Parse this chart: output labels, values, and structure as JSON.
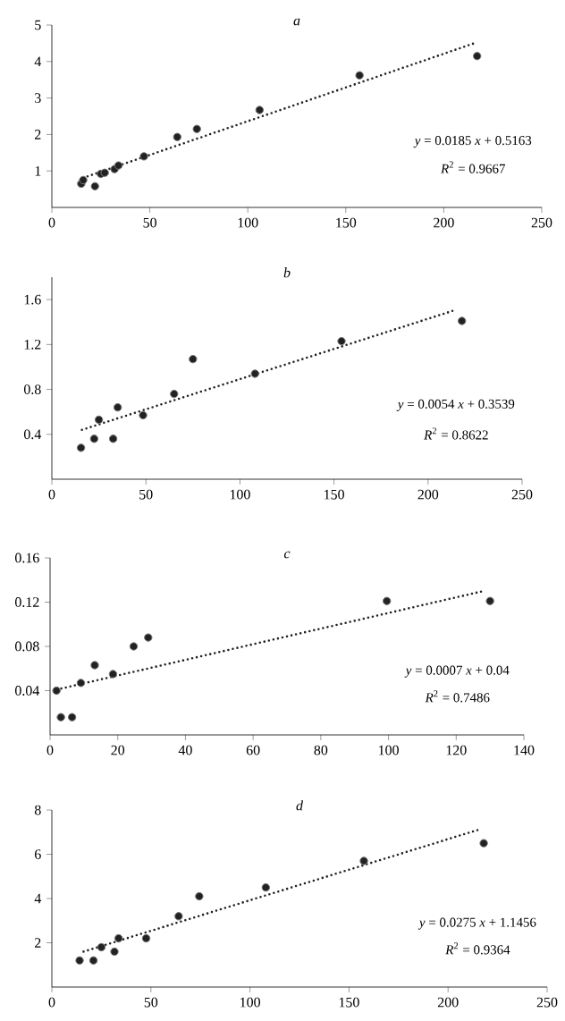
{
  "chart_data": [
    {
      "type": "scatter",
      "title": "a",
      "xlim": [
        0,
        250
      ],
      "ylim": [
        0,
        5
      ],
      "xticks": [
        0,
        50,
        100,
        150,
        200,
        250
      ],
      "yticks": [
        1,
        2,
        3,
        4,
        5
      ],
      "annotations": [
        "*y* = 0.0185 *x* + 0.5163",
        "*R*$^{2}$ = 0.9667"
      ],
      "series": [
        {
          "marker": "circle",
          "color": "#222222",
          "x": [
            15,
            16,
            22,
            25,
            27,
            32,
            34,
            47,
            64,
            74,
            106,
            157,
            217
          ],
          "values": [
            0.65,
            0.75,
            0.58,
            0.92,
            0.95,
            1.05,
            1.15,
            1.4,
            1.93,
            2.15,
            2.67,
            3.62,
            4.15
          ]
        },
        {
          "type": "line",
          "marker": "none",
          "line_style": "dotted",
          "color": "#222222",
          "x": [
            16,
            215
          ],
          "values": [
            0.81,
            4.49
          ]
        }
      ]
    },
    {
      "type": "scatter",
      "title": "b",
      "xlim": [
        0,
        250
      ],
      "ylim": [
        0,
        1.8
      ],
      "xticks": [
        0,
        50,
        100,
        150,
        200,
        250
      ],
      "yticks": [
        0.4,
        0.8,
        1.2,
        1.6
      ],
      "annotations": [
        "*y* = 0.0054 *x* + 0.3539",
        "*R*$^{2}$ = 0.8622"
      ],
      "series": [
        {
          "marker": "circle",
          "color": "#222222",
          "x": [
            15.5,
            22.5,
            25,
            32.6,
            35,
            48.5,
            65,
            75,
            108,
            154,
            218
          ],
          "values": [
            0.28,
            0.36,
            0.53,
            0.36,
            0.64,
            0.57,
            0.76,
            1.07,
            0.94,
            1.23,
            1.41
          ]
        },
        {
          "type": "line",
          "marker": "none",
          "line_style": "dotted",
          "color": "#222222",
          "x": [
            16,
            215
          ],
          "values": [
            0.44,
            1.51
          ]
        }
      ]
    },
    {
      "type": "scatter",
      "title": "c",
      "xlim": [
        0,
        140
      ],
      "ylim": [
        0,
        0.16
      ],
      "xticks": [
        0,
        20,
        40,
        60,
        80,
        100,
        120,
        140
      ],
      "yticks": [
        0.04,
        0.08,
        0.12,
        0.16
      ],
      "annotations": [
        "*y* = 0.0007 *x* + 0.04",
        "*R*$^{2}$ = 0.7486"
      ],
      "series": [
        {
          "marker": "circle",
          "color": "#222222",
          "x": [
            1.9,
            3.2,
            6.5,
            9.1,
            13.2,
            18.6,
            24.7,
            29,
            99.5,
            130
          ],
          "values": [
            0.04,
            0.016,
            0.016,
            0.047,
            0.063,
            0.055,
            0.08,
            0.088,
            0.121,
            0.121
          ]
        },
        {
          "type": "line",
          "marker": "none",
          "line_style": "dotted",
          "color": "#222222",
          "x": [
            2,
            128
          ],
          "values": [
            0.041,
            0.13
          ]
        }
      ]
    },
    {
      "type": "scatter",
      "title": "d",
      "xlim": [
        0,
        250
      ],
      "ylim": [
        0,
        8
      ],
      "xticks": [
        0,
        50,
        100,
        150,
        200,
        250
      ],
      "yticks": [
        2,
        4,
        6,
        8
      ],
      "annotations": [
        "*y* = 0.0275 *x* + 1.1456",
        "*R*$^{2}$ = 0.9364"
      ],
      "series": [
        {
          "marker": "circle",
          "color": "#222222",
          "x": [
            14,
            21,
            25,
            31.6,
            33.7,
            47.6,
            64,
            74.4,
            108,
            157.5,
            218
          ],
          "values": [
            1.2,
            1.2,
            1.8,
            1.6,
            2.2,
            2.2,
            3.2,
            4.1,
            4.5,
            5.7,
            6.5
          ]
        },
        {
          "type": "line",
          "marker": "none",
          "line_style": "dotted",
          "color": "#222222",
          "x": [
            16,
            215
          ],
          "values": [
            1.6,
            7.1
          ]
        }
      ]
    }
  ]
}
